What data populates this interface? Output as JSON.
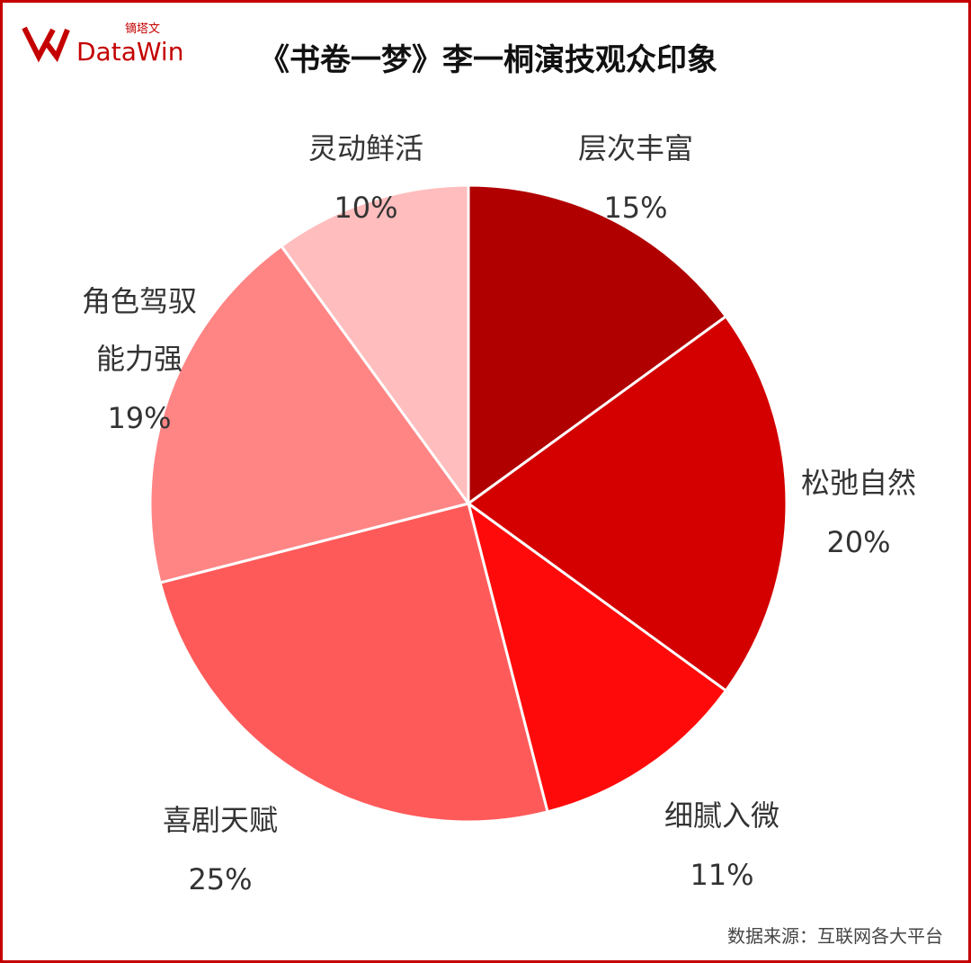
{
  "chart_data": {
    "type": "pie",
    "title": "《书卷一梦》李一桐演技观众印象",
    "categories": [
      "层次丰富",
      "松弛自然",
      "细腻入微",
      "喜剧天赋",
      "角色驾驭能力强",
      "灵动鲜活"
    ],
    "values": [
      15,
      20,
      11,
      25,
      19,
      10
    ],
    "value_labels": [
      "15%",
      "20%",
      "11%",
      "25%",
      "19%",
      "10%"
    ],
    "colors": [
      "#b00000",
      "#d40000",
      "#ff0a0a",
      "#ff5a5a",
      "#ff8585",
      "#ffbdbd"
    ],
    "source": "数据来源：互联网各大平台",
    "logo": {
      "brand": "DataWin",
      "chinese": "镝塔文"
    }
  }
}
